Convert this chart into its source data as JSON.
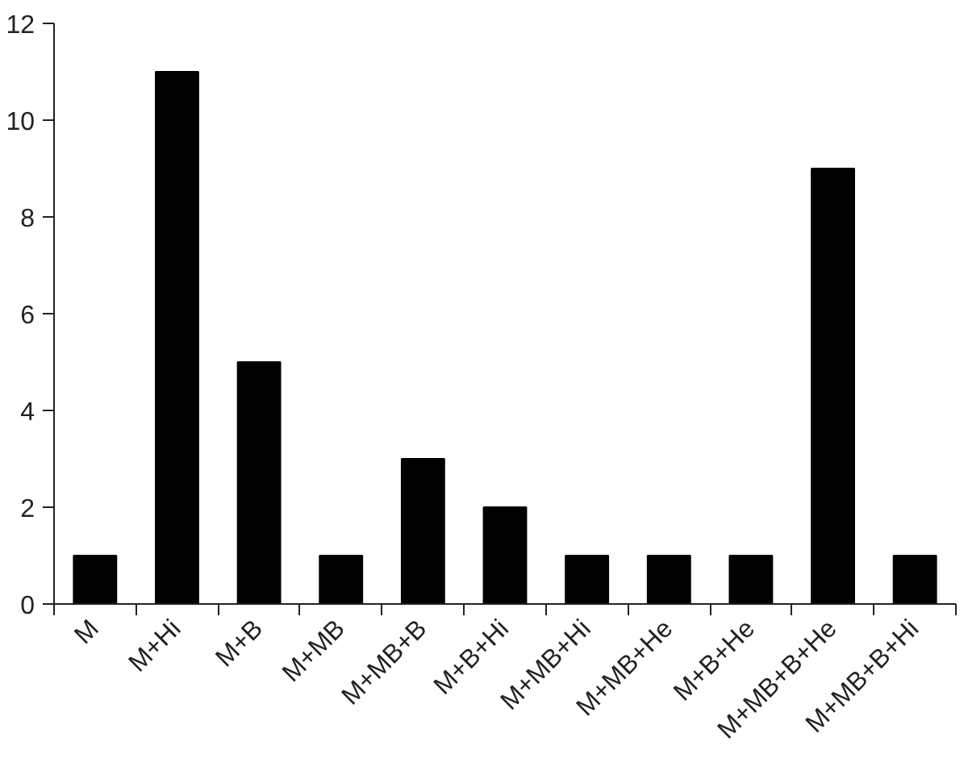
{
  "chart_data": {
    "type": "bar",
    "categories": [
      "M",
      "M+Hi",
      "M+B",
      "M+MB",
      "M+MB+B",
      "M+B+Hi",
      "M+MB+Hi",
      "M+MB+He",
      "M+B+He",
      "M+MB+B+He",
      "M+MB+B+Hi"
    ],
    "values": [
      1,
      11,
      5,
      1,
      3,
      2,
      1,
      1,
      1,
      9,
      1
    ],
    "color": "#000000",
    "ylim": [
      0,
      12
    ],
    "yticks": [
      0,
      2,
      4,
      6,
      8,
      10,
      12
    ],
    "grid": false
  }
}
